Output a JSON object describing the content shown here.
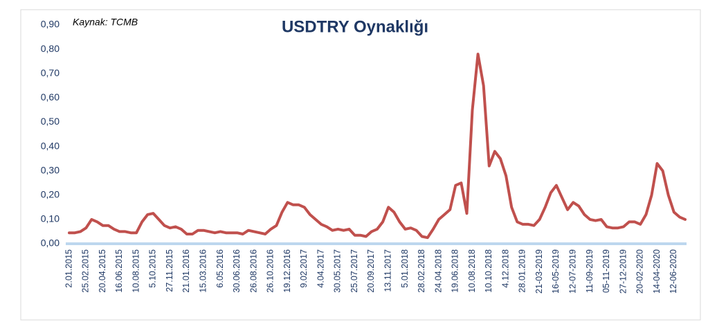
{
  "chart_data": {
    "type": "line",
    "title": "USDTRY Oynaklığı",
    "annotation": "Kaynak: TCMB",
    "categories": [
      "2.01.2015",
      null,
      null,
      "25.02.2015",
      null,
      null,
      "20.04.2015",
      null,
      null,
      "16.06.2015",
      null,
      null,
      "10.08.2015",
      null,
      null,
      "5.10.2015",
      null,
      null,
      "27.11.2015",
      null,
      null,
      "21.01.2016",
      null,
      null,
      "15.03.2016",
      null,
      null,
      "6.05.2016",
      null,
      null,
      "30.06.2016",
      null,
      null,
      "26.08.2016",
      null,
      null,
      "26.10.2016",
      null,
      null,
      "19.12.2016",
      null,
      null,
      "9.02.2017",
      null,
      null,
      "4.04.2017",
      null,
      null,
      "30.05.2017",
      null,
      null,
      "25.07.2017",
      null,
      null,
      "20.09.2017",
      null,
      null,
      "13.11.2017",
      null,
      null,
      "5.01.2018",
      null,
      null,
      "28.02.2018",
      null,
      null,
      "24.04.2018",
      null,
      null,
      "19.06.2018",
      null,
      null,
      "10.08.2018",
      null,
      null,
      "10.10.2018",
      null,
      null,
      "4.12.2018",
      null,
      null,
      "28.01.2019",
      null,
      null,
      "21-03-2019",
      null,
      null,
      "16-05-2019",
      null,
      null,
      "12-07-2019",
      null,
      null,
      "11-09-2019",
      null,
      null,
      "05-11-2019",
      null,
      null,
      "27-12-2019",
      null,
      null,
      "20-02-2020",
      null,
      null,
      "14-04-2020",
      null,
      null,
      "12-06-2020",
      null,
      null
    ],
    "series": [
      {
        "name": "USDTRY",
        "color": "#c0504d",
        "values": [
          0.045,
          0.045,
          0.05,
          0.065,
          0.1,
          0.09,
          0.075,
          0.075,
          0.06,
          0.05,
          0.05,
          0.045,
          0.045,
          0.09,
          0.12,
          0.125,
          0.1,
          0.075,
          0.065,
          0.07,
          0.06,
          0.04,
          0.04,
          0.055,
          0.055,
          0.05,
          0.045,
          0.05,
          0.045,
          0.045,
          0.045,
          0.04,
          0.055,
          0.05,
          0.045,
          0.04,
          0.06,
          0.075,
          0.13,
          0.17,
          0.16,
          0.16,
          0.15,
          0.12,
          0.1,
          0.08,
          0.07,
          0.055,
          0.06,
          0.055,
          0.06,
          0.035,
          0.035,
          0.03,
          0.05,
          0.06,
          0.09,
          0.15,
          0.13,
          0.09,
          0.06,
          0.065,
          0.055,
          0.03,
          0.025,
          0.06,
          0.1,
          0.12,
          0.14,
          0.24,
          0.25,
          0.125,
          0.55,
          0.78,
          0.65,
          0.32,
          0.38,
          0.35,
          0.28,
          0.15,
          0.09,
          0.08,
          0.08,
          0.075,
          0.1,
          0.15,
          0.21,
          0.24,
          0.19,
          0.14,
          0.17,
          0.155,
          0.12,
          0.1,
          0.095,
          0.1,
          0.07,
          0.065,
          0.065,
          0.07,
          0.09,
          0.09,
          0.08,
          0.12,
          0.2,
          0.33,
          0.3,
          0.2,
          0.13,
          0.11,
          0.1
        ]
      }
    ],
    "ylim": [
      0,
      0.9
    ],
    "yticks": [
      {
        "value": 0,
        "label": "0,00"
      },
      {
        "value": 0.1,
        "label": "0,10"
      },
      {
        "value": 0.2,
        "label": "0,20"
      },
      {
        "value": 0.3,
        "label": "0,30"
      },
      {
        "value": 0.4,
        "label": "0,40"
      },
      {
        "value": 0.5,
        "label": "0,50"
      },
      {
        "value": 0.6,
        "label": "0,60"
      },
      {
        "value": 0.7,
        "label": "0,70"
      },
      {
        "value": 0.8,
        "label": "0,80"
      },
      {
        "value": 0.9,
        "label": "0,90"
      }
    ],
    "grid": false
  }
}
